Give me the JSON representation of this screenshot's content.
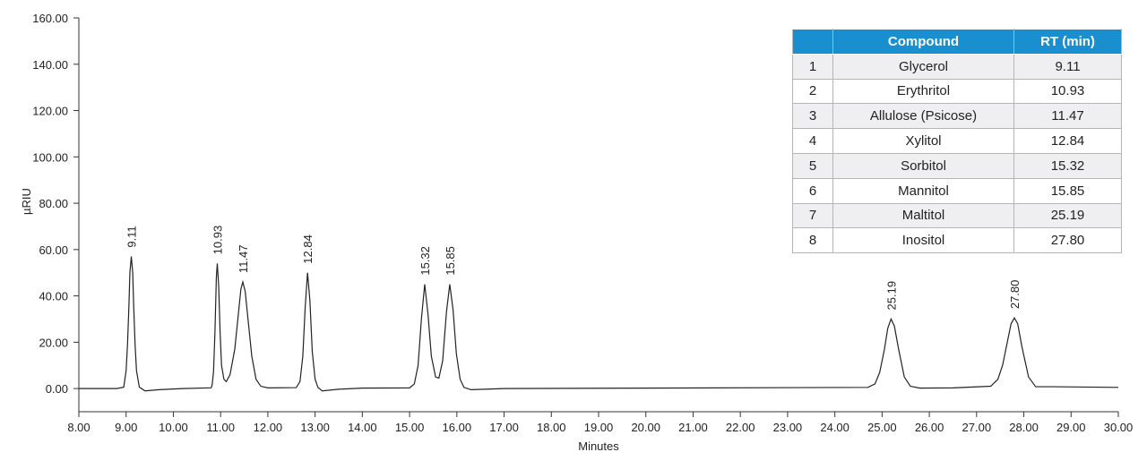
{
  "chart_data": {
    "type": "line",
    "x_label": "Minutes",
    "y_label": "µRIU",
    "xlim": [
      8,
      30
    ],
    "xticks": [
      {
        "value": 8,
        "label": "8.00"
      },
      {
        "value": 9,
        "label": "9.00"
      },
      {
        "value": 10,
        "label": "10.00"
      },
      {
        "value": 11,
        "label": "11.00"
      },
      {
        "value": 12,
        "label": "12.00"
      },
      {
        "value": 13,
        "label": "13.00"
      },
      {
        "value": 14,
        "label": "14.00"
      },
      {
        "value": 15,
        "label": "15.00"
      },
      {
        "value": 16,
        "label": "16.00"
      },
      {
        "value": 17,
        "label": "17.00"
      },
      {
        "value": 18,
        "label": "18.00"
      },
      {
        "value": 19,
        "label": "19.00"
      },
      {
        "value": 20,
        "label": "20.00"
      },
      {
        "value": 21,
        "label": "21.00"
      },
      {
        "value": 22,
        "label": "22.00"
      },
      {
        "value": 23,
        "label": "23.00"
      },
      {
        "value": 24,
        "label": "24.00"
      },
      {
        "value": 25,
        "label": "25.00"
      },
      {
        "value": 26,
        "label": "26.00"
      },
      {
        "value": 27,
        "label": "27.00"
      },
      {
        "value": 28,
        "label": "28.00"
      },
      {
        "value": 29,
        "label": "29.00"
      },
      {
        "value": 30,
        "label": "30.00"
      }
    ],
    "ylim": [
      -10,
      160
    ],
    "yticks": [
      {
        "value": 0,
        "label": "0.00"
      },
      {
        "value": 20,
        "label": "20.00"
      },
      {
        "value": 40,
        "label": "40.00"
      },
      {
        "value": 60,
        "label": "60.00"
      },
      {
        "value": 80,
        "label": "80.00"
      },
      {
        "value": 100,
        "label": "100.00"
      },
      {
        "value": 120,
        "label": "120.00"
      },
      {
        "value": 140,
        "label": "140.00"
      },
      {
        "value": 160,
        "label": "160.00"
      }
    ],
    "color": "#222222",
    "x": [
      8.0,
      8.8,
      8.95,
      9.0,
      9.03,
      9.06,
      9.08,
      9.11,
      9.14,
      9.16,
      9.19,
      9.22,
      9.28,
      9.4,
      9.7,
      10.2,
      10.8,
      10.82,
      10.85,
      10.88,
      10.91,
      10.93,
      10.96,
      10.99,
      11.02,
      11.07,
      11.12,
      11.2,
      11.3,
      11.38,
      11.43,
      11.47,
      11.52,
      11.58,
      11.66,
      11.75,
      11.85,
      12.0,
      12.6,
      12.68,
      12.74,
      12.79,
      12.84,
      12.89,
      12.94,
      13.0,
      13.06,
      13.15,
      13.5,
      14.0,
      15.0,
      15.1,
      15.18,
      15.25,
      15.32,
      15.39,
      15.46,
      15.55,
      15.62,
      15.7,
      15.78,
      15.85,
      15.92,
      15.99,
      16.07,
      16.15,
      16.3,
      17.0,
      24.7,
      24.85,
      24.95,
      25.05,
      25.12,
      25.19,
      25.26,
      25.35,
      25.47,
      25.6,
      25.8,
      26.5,
      27.3,
      27.45,
      27.55,
      27.65,
      27.73,
      27.8,
      27.87,
      27.96,
      28.1,
      28.25,
      28.6,
      30.0
    ],
    "values": [
      0,
      0,
      0.6,
      7.7,
      19,
      36,
      50,
      57,
      50,
      36,
      19,
      7.7,
      0.6,
      -1,
      -0.5,
      0,
      0.3,
      1.5,
      7,
      24,
      48,
      54,
      44,
      24,
      10,
      4,
      3,
      6,
      17,
      33,
      43,
      46,
      42,
      30,
      14,
      4,
      1,
      0.3,
      0.4,
      3,
      14,
      35,
      50,
      38,
      16,
      4,
      0.5,
      -1,
      -0.3,
      0.2,
      0.3,
      2,
      10,
      30,
      45,
      32,
      14,
      5,
      4.5,
      12,
      33,
      45,
      34,
      15,
      4,
      0.5,
      -0.5,
      0,
      0.5,
      2,
      7,
      17,
      26,
      30,
      27,
      17,
      5,
      1,
      0.2,
      0.3,
      1,
      4,
      10,
      20,
      28,
      30.5,
      28,
      18,
      5,
      0.8,
      0.8,
      0.5
    ],
    "annotations": [
      {
        "value": 9.11,
        "label": "9.11"
      },
      {
        "value": 10.93,
        "label": "10.93"
      },
      {
        "value": 11.47,
        "label": "11.47"
      },
      {
        "value": 12.84,
        "label": "12.84"
      },
      {
        "value": 15.32,
        "label": "15.32"
      },
      {
        "value": 15.85,
        "label": "15.85"
      },
      {
        "value": 25.19,
        "label": "25.19"
      },
      {
        "value": 27.8,
        "label": "27.80"
      }
    ]
  },
  "table": {
    "header": [
      "Compound",
      "RT (min)"
    ],
    "rows": [
      [
        "1",
        "Glycerol",
        "9.11"
      ],
      [
        "2",
        "Erythritol",
        "10.93"
      ],
      [
        "3",
        "Allulose (Psicose)",
        "11.47"
      ],
      [
        "4",
        "Xylitol",
        "12.84"
      ],
      [
        "5",
        "Sorbitol",
        "15.32"
      ],
      [
        "6",
        "Mannitol",
        "15.85"
      ],
      [
        "7",
        "Maltitol",
        "25.19"
      ],
      [
        "8",
        "Inositol",
        "27.80"
      ]
    ]
  }
}
